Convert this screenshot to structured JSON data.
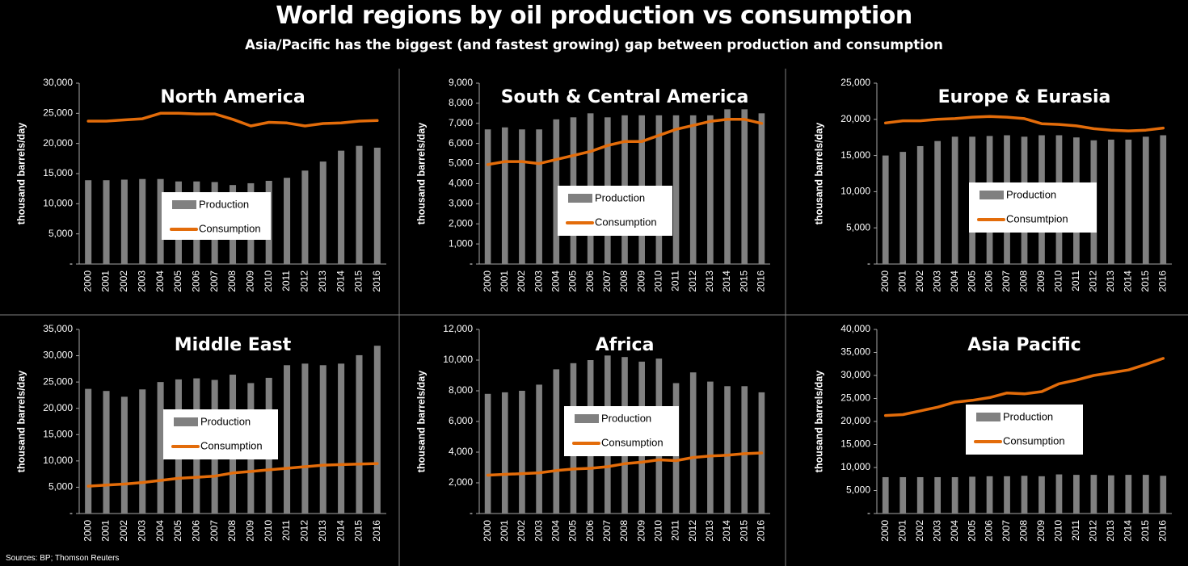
{
  "header": {
    "title": "World regions by oil production vs consumption",
    "subtitle": "Asia/Pacific has the biggest (and fastest growing) gap between production and consumption"
  },
  "footer": {
    "source": "Sources: BP; Thomson Reuters"
  },
  "colors": {
    "background": "#000000",
    "production": "#808080",
    "consumption": "#e36c0a",
    "text": "#ffffff",
    "divider": "#808080"
  },
  "chart_data": [
    {
      "type": "bar",
      "title": "North America",
      "ylabel": "thousand barrels/day",
      "ylim": [
        0,
        30000
      ],
      "yticks": [
        "-",
        "5,000",
        "10,000",
        "15,000",
        "20,000",
        "25,000",
        "30,000"
      ],
      "categories": [
        "2000",
        "2001",
        "2002",
        "2003",
        "2004",
        "2005",
        "2006",
        "2007",
        "2008",
        "2009",
        "2010",
        "2011",
        "2012",
        "2013",
        "2014",
        "2015",
        "2016"
      ],
      "legend": {
        "production": "Production",
        "consumption": "Consumption"
      },
      "series": [
        {
          "name": "Production",
          "type": "bar",
          "values": [
            13900,
            13900,
            14000,
            14100,
            14100,
            13700,
            13700,
            13600,
            13100,
            13400,
            13800,
            14300,
            15500,
            17000,
            18800,
            19600,
            19300
          ]
        },
        {
          "name": "Consumption",
          "type": "line",
          "values": [
            23700,
            23700,
            23900,
            24100,
            25000,
            25000,
            24900,
            24900,
            24000,
            22900,
            23500,
            23400,
            22900,
            23300,
            23400,
            23700,
            23800
          ]
        }
      ]
    },
    {
      "type": "bar",
      "title": "South & Central America",
      "ylabel": "thousand barrels/day",
      "ylim": [
        0,
        9000
      ],
      "yticks": [
        "-",
        "1,000",
        "2,000",
        "3,000",
        "4,000",
        "5,000",
        "6,000",
        "7,000",
        "8,000",
        "9,000"
      ],
      "categories": [
        "2000",
        "2001",
        "2002",
        "2003",
        "2004",
        "2005",
        "2006",
        "2007",
        "2008",
        "2009",
        "2010",
        "2011",
        "2012",
        "2013",
        "2014",
        "2015",
        "2016"
      ],
      "legend": {
        "production": "Production",
        "consumption": "Consumption"
      },
      "series": [
        {
          "name": "Production",
          "type": "bar",
          "values": [
            6700,
            6800,
            6700,
            6700,
            7200,
            7300,
            7500,
            7300,
            7400,
            7400,
            7400,
            7400,
            7400,
            7400,
            7700,
            7700,
            7500
          ]
        },
        {
          "name": "Consumption",
          "type": "line",
          "values": [
            4950,
            5100,
            5100,
            5000,
            5200,
            5400,
            5600,
            5900,
            6100,
            6100,
            6400,
            6700,
            6900,
            7100,
            7200,
            7200,
            7000
          ]
        }
      ]
    },
    {
      "type": "bar",
      "title": "Europe & Eurasia",
      "ylabel": "thousand barrels/day",
      "ylim": [
        0,
        25000
      ],
      "yticks": [
        "-",
        "5,000",
        "10,000",
        "15,000",
        "20,000",
        "25,000"
      ],
      "categories": [
        "2000",
        "2001",
        "2002",
        "2003",
        "2004",
        "2005",
        "2006",
        "2007",
        "2008",
        "2009",
        "2010",
        "2011",
        "2012",
        "2013",
        "2014",
        "2015",
        "2016"
      ],
      "legend": {
        "production": "Production",
        "consumption": "Consumtpion"
      },
      "series": [
        {
          "name": "Production",
          "type": "bar",
          "values": [
            15000,
            15500,
            16300,
            17000,
            17600,
            17600,
            17700,
            17800,
            17600,
            17800,
            17800,
            17500,
            17100,
            17200,
            17200,
            17600,
            17800
          ]
        },
        {
          "name": "Consumtpion",
          "type": "line",
          "values": [
            19500,
            19800,
            19800,
            20000,
            20100,
            20300,
            20400,
            20300,
            20100,
            19400,
            19300,
            19100,
            18700,
            18500,
            18400,
            18500,
            18800
          ]
        }
      ]
    },
    {
      "type": "bar",
      "title": "Middle East",
      "ylabel": "thousand barrels/day",
      "ylim": [
        0,
        35000
      ],
      "yticks": [
        "-",
        "5,000",
        "10,000",
        "15,000",
        "20,000",
        "25,000",
        "30,000",
        "35,000"
      ],
      "categories": [
        "2000",
        "2001",
        "2002",
        "2003",
        "2004",
        "2005",
        "2006",
        "2007",
        "2008",
        "2009",
        "2010",
        "2011",
        "2012",
        "2013",
        "2014",
        "2015",
        "2016"
      ],
      "legend": {
        "production": "Production",
        "consumption": "Consumption"
      },
      "series": [
        {
          "name": "Production",
          "type": "bar",
          "values": [
            23700,
            23300,
            22200,
            23600,
            25000,
            25500,
            25700,
            25400,
            26400,
            24800,
            25800,
            28200,
            28500,
            28200,
            28500,
            30100,
            31900
          ]
        },
        {
          "name": "Consumption",
          "type": "line",
          "values": [
            5200,
            5400,
            5600,
            5900,
            6300,
            6700,
            6900,
            7100,
            7700,
            8000,
            8300,
            8600,
            8900,
            9200,
            9300,
            9400,
            9500
          ]
        }
      ]
    },
    {
      "type": "bar",
      "title": "Africa",
      "ylabel": "thousand barrels/day",
      "ylim": [
        0,
        12000
      ],
      "yticks": [
        "-",
        "2,000",
        "4,000",
        "6,000",
        "8,000",
        "10,000",
        "12,000"
      ],
      "categories": [
        "2000",
        "2001",
        "2002",
        "2003",
        "2004",
        "2005",
        "2006",
        "2007",
        "2008",
        "2009",
        "2010",
        "2011",
        "2012",
        "2013",
        "2014",
        "2015",
        "2016"
      ],
      "legend": {
        "production": "Production",
        "consumption": "Consumption"
      },
      "series": [
        {
          "name": "Production",
          "type": "bar",
          "values": [
            7800,
            7900,
            8000,
            8400,
            9400,
            9800,
            10000,
            10300,
            10200,
            9900,
            10100,
            8500,
            9200,
            8600,
            8300,
            8300,
            7900
          ]
        },
        {
          "name": "Consumption",
          "type": "line",
          "values": [
            2500,
            2550,
            2600,
            2650,
            2800,
            2900,
            2950,
            3050,
            3250,
            3350,
            3500,
            3450,
            3650,
            3750,
            3800,
            3900,
            3950
          ]
        }
      ]
    },
    {
      "type": "bar",
      "title": "Asia Pacific",
      "ylabel": "thousand barrels/day",
      "ylim": [
        0,
        40000
      ],
      "yticks": [
        "-",
        "5,000",
        "10,000",
        "15,000",
        "20,000",
        "25,000",
        "30,000",
        "35,000",
        "40,000"
      ],
      "categories": [
        "2000",
        "2001",
        "2002",
        "2003",
        "2004",
        "2005",
        "2006",
        "2007",
        "2008",
        "2009",
        "2010",
        "2011",
        "2012",
        "2013",
        "2014",
        "2015",
        "2016"
      ],
      "legend": {
        "production": "Production",
        "consumption": "Consumption"
      },
      "series": [
        {
          "name": "Production",
          "type": "bar",
          "values": [
            7900,
            7900,
            7900,
            7900,
            7900,
            8000,
            8100,
            8100,
            8200,
            8100,
            8500,
            8400,
            8400,
            8300,
            8400,
            8400,
            8200
          ]
        },
        {
          "name": "Consumption",
          "type": "line",
          "values": [
            21300,
            21500,
            22300,
            23100,
            24200,
            24600,
            25200,
            26200,
            26000,
            26500,
            28200,
            29000,
            30000,
            30600,
            31200,
            32400,
            33700
          ]
        }
      ]
    }
  ]
}
